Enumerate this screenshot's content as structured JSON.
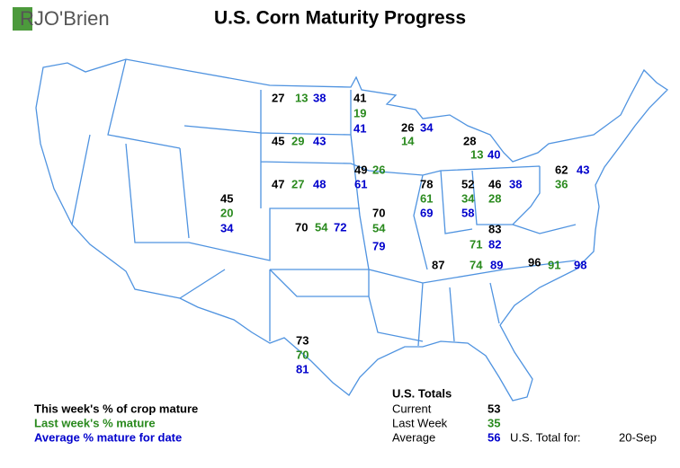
{
  "header": {
    "logo": "RJO'Brien",
    "title": "U.S. Corn Maturity Progress"
  },
  "states": [
    {
      "current": 27,
      "last_week": 13,
      "average": 38
    },
    {
      "current": 41,
      "last_week": 19,
      "average": 41
    },
    {
      "current": 45,
      "last_week": 29,
      "average": 43
    },
    {
      "current": 26,
      "last_week": 14,
      "average": 34
    },
    {
      "current": 28,
      "last_week": 13,
      "average": 40
    },
    {
      "current": 47,
      "last_week": 27,
      "average": 48
    },
    {
      "current": 49,
      "last_week": 26,
      "average": 61
    },
    {
      "current": 45,
      "last_week": 20,
      "average": 34
    },
    {
      "current": 70,
      "last_week": 54,
      "average": 72
    },
    {
      "current": 70,
      "last_week": 54,
      "average": 79
    },
    {
      "current": 78,
      "last_week": 61,
      "average": 69
    },
    {
      "current": 52,
      "last_week": 34,
      "average": 58
    },
    {
      "current": 46,
      "last_week": 28,
      "average": 38
    },
    {
      "current": 62,
      "last_week": 36,
      "average": 43
    },
    {
      "current": 83,
      "last_week": 71,
      "average": 82
    },
    {
      "current": 87,
      "last_week": 74,
      "average": 89
    },
    {
      "current": 96,
      "last_week": 91,
      "average": 98
    },
    {
      "current": 73,
      "last_week": 70,
      "average": 81
    }
  ],
  "legend": [
    "This week's % of crop mature",
    "Last week's % mature",
    "Average % mature for date"
  ],
  "totals": {
    "title": "U.S. Totals",
    "rows": [
      {
        "label": "Current",
        "value": 53
      },
      {
        "label": "Last Week",
        "value": 35
      },
      {
        "label": "Average",
        "value": 56
      }
    ],
    "date_label": "U.S. Total for:",
    "date": "20-Sep"
  }
}
